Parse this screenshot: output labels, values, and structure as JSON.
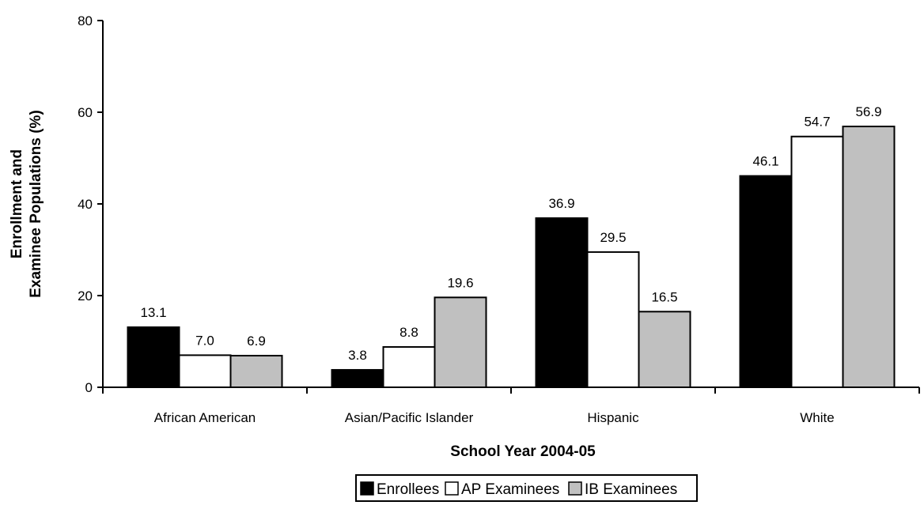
{
  "chart_data": {
    "type": "bar",
    "title": "",
    "xlabel": "School Year 2004-05",
    "ylabel_lines": [
      "Enrollment and",
      "Examinee Populations (%)"
    ],
    "categories": [
      "African American",
      "Asian/Pacific Islander",
      "Hispanic",
      "White"
    ],
    "series": [
      {
        "name": "Enrollees",
        "values": [
          13.1,
          3.8,
          36.9,
          46.1
        ],
        "labels": [
          "13.1",
          "3.8",
          "36.9",
          "46.1"
        ],
        "color": "#000000"
      },
      {
        "name": "AP Examinees",
        "values": [
          7.0,
          8.8,
          29.5,
          54.7
        ],
        "labels": [
          "7.0",
          "8.8",
          "29.5",
          "54.7"
        ],
        "color": "#ffffff"
      },
      {
        "name": "IB Examinees",
        "values": [
          6.9,
          19.6,
          16.5,
          56.9
        ],
        "labels": [
          "6.9",
          "19.6",
          "16.5",
          "56.9"
        ],
        "color": "#c0c0c0"
      }
    ],
    "ylim": [
      0,
      80
    ],
    "yticks": [
      0,
      20,
      40,
      60,
      80
    ],
    "grid": false,
    "legend_position": "bottom-center"
  }
}
